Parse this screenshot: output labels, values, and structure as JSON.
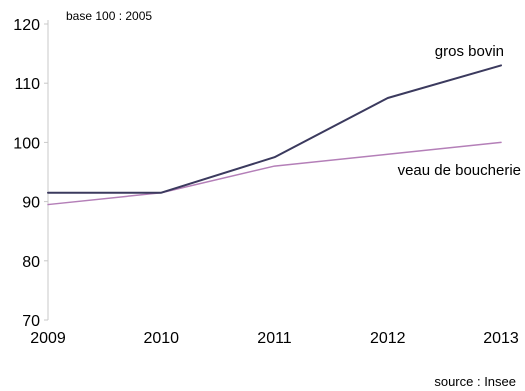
{
  "chart_data": {
    "type": "line",
    "subtitle": "base 100 : 2005",
    "source": "source : Insee",
    "x": [
      "2009",
      "2010",
      "2011",
      "2012",
      "2013"
    ],
    "y_ticks": [
      70,
      80,
      90,
      100,
      110,
      120
    ],
    "ylim": [
      70,
      120
    ],
    "grid": false,
    "series": [
      {
        "name": "gros bovin",
        "values": [
          91.5,
          91.5,
          97.5,
          107.5,
          113
        ],
        "color": "#3b3a5e"
      },
      {
        "name": "veau de boucherie",
        "values": [
          89.5,
          91.5,
          96,
          98,
          100
        ],
        "color": "#b47fb8"
      }
    ]
  }
}
